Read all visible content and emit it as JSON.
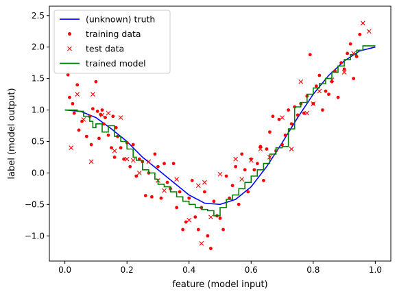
{
  "chart_data": {
    "type": "scatter",
    "xlabel": "feature (model input)",
    "ylabel": "label (model output)",
    "xlim": [
      -0.05,
      1.05
    ],
    "ylim": [
      -1.4,
      2.65
    ],
    "xticks": [
      0.0,
      0.2,
      0.4,
      0.6,
      0.8,
      1.0
    ],
    "xtick_labels": [
      "0.0",
      "0.2",
      "0.4",
      "0.6",
      "0.8",
      "1.0"
    ],
    "yticks": [
      -1.0,
      -0.5,
      0.0,
      0.5,
      1.0,
      1.5,
      2.0,
      2.5
    ],
    "ytick_labels": [
      "−1.0",
      "−0.5",
      "0.0",
      "0.5",
      "1.0",
      "1.5",
      "2.0",
      "2.5"
    ],
    "grid": false,
    "legend_position": "top-left",
    "series": [
      {
        "name": "(unknown) truth",
        "kind": "line",
        "color": "#0000ff",
        "x": [
          0.0,
          0.05,
          0.1,
          0.15,
          0.2,
          0.25,
          0.3,
          0.35,
          0.4,
          0.45,
          0.5,
          0.55,
          0.6,
          0.65,
          0.7,
          0.75,
          0.8,
          0.85,
          0.9,
          0.95,
          1.0
        ],
        "y": [
          1.0,
          0.98,
          0.88,
          0.7,
          0.5,
          0.25,
          0.05,
          -0.15,
          -0.35,
          -0.48,
          -0.5,
          -0.42,
          -0.22,
          0.1,
          0.48,
          0.88,
          1.25,
          1.55,
          1.78,
          1.94,
          2.0
        ]
      },
      {
        "name": "training data",
        "kind": "points",
        "marker": "dot",
        "color": "#ff0000",
        "x": [
          0.01,
          0.015,
          0.025,
          0.03,
          0.04,
          0.045,
          0.055,
          0.07,
          0.08,
          0.085,
          0.09,
          0.1,
          0.105,
          0.11,
          0.115,
          0.12,
          0.125,
          0.13,
          0.14,
          0.15,
          0.155,
          0.16,
          0.165,
          0.17,
          0.18,
          0.19,
          0.2,
          0.21,
          0.22,
          0.23,
          0.24,
          0.25,
          0.26,
          0.27,
          0.28,
          0.29,
          0.3,
          0.31,
          0.32,
          0.33,
          0.34,
          0.35,
          0.36,
          0.37,
          0.38,
          0.39,
          0.4,
          0.41,
          0.42,
          0.43,
          0.44,
          0.45,
          0.46,
          0.47,
          0.48,
          0.49,
          0.5,
          0.51,
          0.52,
          0.53,
          0.54,
          0.55,
          0.56,
          0.57,
          0.58,
          0.59,
          0.6,
          0.61,
          0.62,
          0.63,
          0.64,
          0.65,
          0.66,
          0.67,
          0.68,
          0.69,
          0.7,
          0.71,
          0.72,
          0.73,
          0.74,
          0.75,
          0.76,
          0.77,
          0.78,
          0.79,
          0.8,
          0.81,
          0.82,
          0.83,
          0.84,
          0.85,
          0.86,
          0.87,
          0.88,
          0.89,
          0.9,
          0.91,
          0.92,
          0.93,
          0.94,
          0.95
        ],
        "y": [
          1.56,
          1.2,
          1.1,
          0.95,
          1.4,
          0.68,
          0.82,
          0.58,
          0.9,
          0.45,
          1.02,
          1.45,
          0.98,
          0.55,
          0.93,
          1.0,
          0.78,
          0.88,
          0.6,
          0.4,
          0.9,
          0.25,
          0.72,
          0.58,
          0.4,
          0.22,
          0.48,
          0.1,
          0.45,
          -0.05,
          0.22,
          0.18,
          -0.36,
          0.0,
          -0.38,
          0.3,
          0.1,
          -0.4,
          0.15,
          -0.15,
          -0.25,
          0.15,
          -0.55,
          -0.3,
          -0.9,
          -0.78,
          -0.4,
          -0.12,
          -0.7,
          -0.9,
          -0.55,
          -0.3,
          -1.0,
          -1.2,
          -0.45,
          -0.68,
          -0.72,
          -0.9,
          -0.05,
          -0.4,
          -0.2,
          0.1,
          -0.5,
          0.3,
          0.05,
          -0.3,
          0.22,
          0.05,
          0.15,
          0.42,
          -0.12,
          0.38,
          0.65,
          0.9,
          0.35,
          0.85,
          0.45,
          0.6,
          1.0,
          0.78,
          1.05,
          0.92,
          1.1,
          0.95,
          1.22,
          1.88,
          1.1,
          1.38,
          1.55,
          1.0,
          1.3,
          1.25,
          1.45,
          1.62,
          1.2,
          1.75,
          1.65,
          1.9,
          2.05,
          1.5,
          1.85,
          2.2
        ]
      },
      {
        "name": "test data",
        "kind": "points",
        "marker": "x",
        "color": "#ff0000",
        "x": [
          0.02,
          0.04,
          0.06,
          0.085,
          0.09,
          0.12,
          0.14,
          0.16,
          0.18,
          0.2,
          0.22,
          0.24,
          0.27,
          0.3,
          0.32,
          0.36,
          0.4,
          0.43,
          0.44,
          0.45,
          0.47,
          0.5,
          0.55,
          0.57,
          0.6,
          0.63,
          0.66,
          0.7,
          0.73,
          0.76,
          0.78,
          0.8,
          0.82,
          0.86,
          0.9,
          0.93,
          0.96,
          0.98
        ],
        "y": [
          0.4,
          1.25,
          0.85,
          0.18,
          1.25,
          0.92,
          0.95,
          0.35,
          0.88,
          0.22,
          0.2,
          0.0,
          0.18,
          -0.12,
          -0.28,
          -0.1,
          -0.75,
          -0.2,
          -1.12,
          -0.15,
          -0.7,
          -0.02,
          0.22,
          -0.1,
          0.2,
          0.38,
          0.25,
          0.88,
          0.38,
          1.45,
          0.95,
          1.1,
          1.3,
          1.48,
          1.6,
          1.9,
          2.38,
          2.25
        ]
      },
      {
        "name": "trained model",
        "kind": "step",
        "color": "#008000",
        "x": [
          0.0,
          0.04,
          0.06,
          0.08,
          0.09,
          0.1,
          0.12,
          0.14,
          0.16,
          0.18,
          0.2,
          0.22,
          0.23,
          0.25,
          0.27,
          0.29,
          0.3,
          0.32,
          0.34,
          0.36,
          0.38,
          0.4,
          0.42,
          0.44,
          0.46,
          0.48,
          0.5,
          0.52,
          0.54,
          0.56,
          0.58,
          0.6,
          0.62,
          0.64,
          0.66,
          0.68,
          0.7,
          0.72,
          0.74,
          0.76,
          0.78,
          0.8,
          0.82,
          0.84,
          0.86,
          0.88,
          0.9,
          0.92,
          0.94,
          0.96,
          1.0
        ],
        "y": [
          1.0,
          0.98,
          0.9,
          0.82,
          0.72,
          0.78,
          0.65,
          0.75,
          0.58,
          0.5,
          0.38,
          0.25,
          0.2,
          0.05,
          0.0,
          -0.1,
          -0.18,
          -0.22,
          -0.3,
          -0.38,
          -0.45,
          -0.5,
          -0.55,
          -0.58,
          -0.6,
          -0.68,
          -0.55,
          -0.42,
          -0.35,
          -0.25,
          -0.15,
          -0.05,
          0.05,
          0.15,
          0.3,
          0.4,
          0.42,
          0.7,
          1.05,
          1.12,
          1.25,
          1.35,
          1.42,
          1.5,
          1.6,
          1.7,
          1.8,
          1.88,
          1.95,
          2.02,
          2.02
        ]
      }
    ]
  }
}
